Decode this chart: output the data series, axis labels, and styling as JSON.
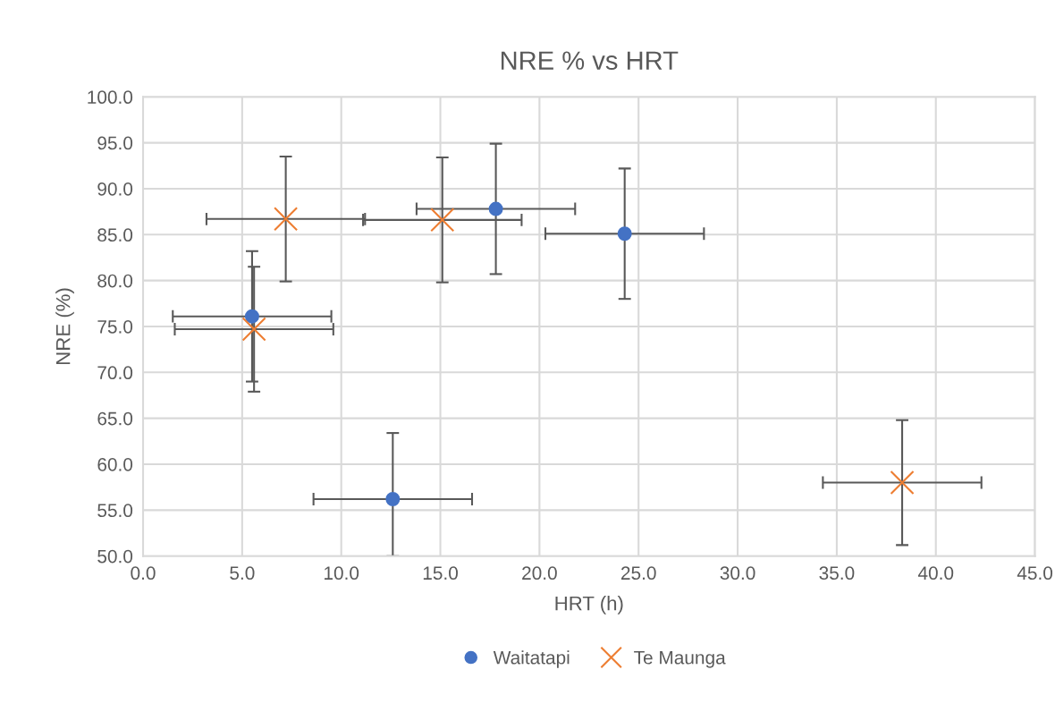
{
  "chart_data": {
    "type": "scatter",
    "title": "NRE % vs HRT",
    "xlabel": "HRT (h)",
    "ylabel": "NRE (%)",
    "series": [
      {
        "name": "Waitatapi",
        "color": "#4472c4",
        "marker": "circle",
        "x": [
          5.5,
          17.8,
          24.3,
          12.6
        ],
        "values": [
          76.1,
          87.8,
          85.1,
          56.2
        ],
        "errors": [
          [
            69.0,
            83.2
          ],
          [
            80.7,
            94.9
          ],
          [
            78.0,
            92.2
          ],
          [
            50.0,
            63.4
          ]
        ],
        "xerrors": [
          [
            1.5,
            9.5
          ],
          [
            13.8,
            21.8
          ],
          [
            20.3,
            28.3
          ],
          [
            8.6,
            16.6
          ]
        ]
      },
      {
        "name": "Te Maunga",
        "color": "#ed7d31",
        "marker": "cross",
        "x": [
          5.6,
          7.2,
          15.1,
          38.3
        ],
        "values": [
          74.7,
          86.7,
          86.6,
          58.0
        ],
        "errors": [
          [
            67.9,
            81.5
          ],
          [
            79.9,
            93.5
          ],
          [
            79.8,
            93.4
          ],
          [
            51.2,
            64.8
          ]
        ],
        "xerrors": [
          [
            1.6,
            9.6
          ],
          [
            3.2,
            11.2
          ],
          [
            11.1,
            19.1
          ],
          [
            34.3,
            42.3
          ]
        ]
      }
    ],
    "xlim": [
      0,
      45
    ],
    "xticks": [
      {
        "value": 0,
        "label": "0.0"
      },
      {
        "value": 5,
        "label": "5.0"
      },
      {
        "value": 10,
        "label": "10.0"
      },
      {
        "value": 15,
        "label": "15.0"
      },
      {
        "value": 20,
        "label": "20.0"
      },
      {
        "value": 25,
        "label": "25.0"
      },
      {
        "value": 30,
        "label": "30.0"
      },
      {
        "value": 35,
        "label": "35.0"
      },
      {
        "value": 40,
        "label": "40.0"
      },
      {
        "value": 45,
        "label": "45.0"
      }
    ],
    "ylim": [
      50,
      100
    ],
    "yticks": [
      {
        "value": 50,
        "label": "50.0"
      },
      {
        "value": 55,
        "label": "55.0"
      },
      {
        "value": 60,
        "label": "60.0"
      },
      {
        "value": 65,
        "label": "65.0"
      },
      {
        "value": 70,
        "label": "70.0"
      },
      {
        "value": 75,
        "label": "75.0"
      },
      {
        "value": 80,
        "label": "80.0"
      },
      {
        "value": 85,
        "label": "85.0"
      },
      {
        "value": 90,
        "label": "90.0"
      },
      {
        "value": 95,
        "label": "95.0"
      },
      {
        "value": 100,
        "label": "100.0"
      }
    ],
    "grid": true,
    "legend": "bottom"
  }
}
